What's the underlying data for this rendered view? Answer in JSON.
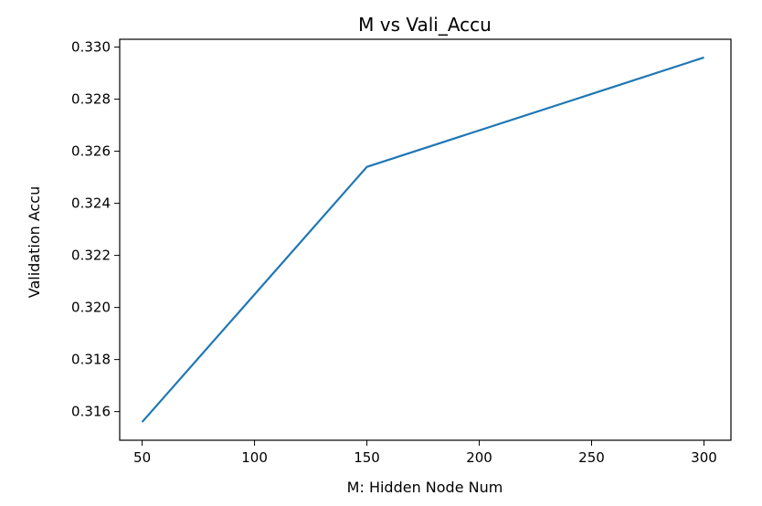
{
  "chart_data": {
    "type": "line",
    "title": "M vs Vali_Accu",
    "xlabel": "M: Hidden Node Num",
    "ylabel": "Validation Accu",
    "xlim": [
      40,
      312
    ],
    "ylim": [
      0.3149,
      0.3303
    ],
    "xticks": [
      50,
      100,
      150,
      200,
      250,
      300
    ],
    "xtick_labels": [
      "50",
      "100",
      "150",
      "200",
      "250",
      "300"
    ],
    "yticks": [
      0.316,
      0.318,
      0.32,
      0.322,
      0.324,
      0.326,
      0.328,
      0.33
    ],
    "ytick_labels": [
      "0.316",
      "0.318",
      "0.320",
      "0.322",
      "0.324",
      "0.326",
      "0.328",
      "0.330"
    ],
    "grid": false,
    "series": [
      {
        "color": "#1f77b4",
        "x": [
          50,
          150,
          300
        ],
        "y": [
          0.3156,
          0.3254,
          0.3296
        ]
      }
    ]
  }
}
